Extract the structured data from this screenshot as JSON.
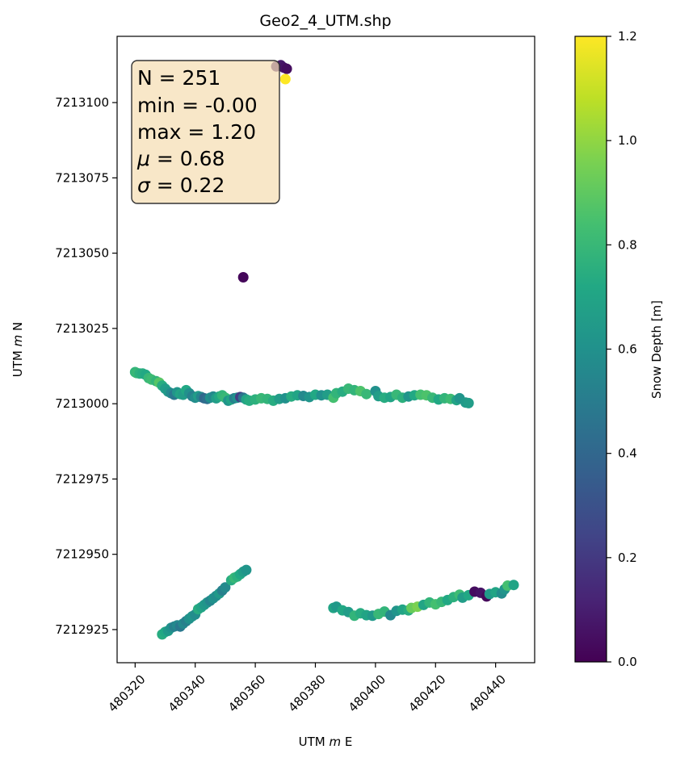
{
  "chart_data": {
    "type": "scatter",
    "title": "Geo2_4_UTM.shp",
    "xlabel": {
      "pre": "UTM ",
      "italic": "m",
      "post": " E"
    },
    "ylabel": {
      "pre": "UTM ",
      "italic": "m",
      "post": " N"
    },
    "xlim": [
      480314,
      480453
    ],
    "ylim": [
      7212914,
      7213122
    ],
    "x_ticks": [
      480320,
      480340,
      480360,
      480380,
      480400,
      480420,
      480440
    ],
    "y_ticks": [
      7212925,
      7212950,
      7212975,
      7213000,
      7213025,
      7213050,
      7213075,
      7213100
    ],
    "grid": false,
    "colormap": "viridis",
    "colorbar": {
      "label": "Snow Depth [m]",
      "range": [
        0.0,
        1.2
      ],
      "ticks": [
        "0.0",
        "0.2",
        "0.4",
        "0.6",
        "0.8",
        "1.0",
        "1.2"
      ]
    },
    "stats_box": {
      "lines": [
        {
          "pre": "N = 251"
        },
        {
          "pre": "min = -0.00"
        },
        {
          "pre": "max = 1.20"
        },
        {
          "sym": "μ",
          "post": " = 0.68"
        },
        {
          "sym": "σ",
          "post": " = 0.22"
        }
      ]
    },
    "points": [
      [
        480320.0,
        7213010.5,
        0.78
      ],
      [
        480320.5,
        7213010.2,
        0.8
      ],
      [
        480321.5,
        7213010.0,
        0.76
      ],
      [
        480322.5,
        7213010.0,
        0.74
      ],
      [
        480323.5,
        7213009.6,
        0.72
      ],
      [
        480324.5,
        7213008.5,
        0.8
      ],
      [
        480325.5,
        7213008.0,
        0.82
      ],
      [
        480327.0,
        7213007.5,
        0.78
      ],
      [
        480328.0,
        7213007.0,
        0.88
      ],
      [
        480329.0,
        7213006.0,
        0.74
      ],
      [
        480330.0,
        7213005.0,
        0.66
      ],
      [
        480331.0,
        7213004.0,
        0.64
      ],
      [
        480332.0,
        7213003.5,
        0.56
      ],
      [
        480333.0,
        7213003.0,
        0.48
      ],
      [
        480334.0,
        7213003.8,
        0.62
      ],
      [
        480335.0,
        7213003.2,
        0.7
      ],
      [
        480336.0,
        7213003.0,
        0.66
      ],
      [
        480337.0,
        7213004.5,
        0.72
      ],
      [
        480338.0,
        7213003.5,
        0.6
      ],
      [
        480339.0,
        7213002.5,
        0.52
      ],
      [
        480340.0,
        7213002.0,
        0.58
      ],
      [
        480341.0,
        7213002.5,
        0.66
      ],
      [
        480342.0,
        7213002.2,
        0.54
      ],
      [
        480343.0,
        7213001.8,
        0.4
      ],
      [
        480344.0,
        7213001.6,
        0.44
      ],
      [
        480345.0,
        7213002.0,
        0.6
      ],
      [
        480346.0,
        7213002.4,
        0.56
      ],
      [
        480347.0,
        7213001.8,
        0.66
      ],
      [
        480348.0,
        7213002.4,
        0.72
      ],
      [
        480349.0,
        7213002.8,
        0.78
      ],
      [
        480350.0,
        7213002.0,
        0.8
      ],
      [
        480351.0,
        7213001.0,
        0.62
      ],
      [
        480352.0,
        7213001.4,
        0.7
      ],
      [
        480353.0,
        7213001.8,
        0.52
      ],
      [
        480354.0,
        7213002.0,
        0.6
      ],
      [
        480355.0,
        7213002.2,
        0.22
      ],
      [
        480356.0,
        7213002.0,
        0.46
      ],
      [
        480357.0,
        7213001.4,
        0.7
      ],
      [
        480358.0,
        7213001.0,
        0.74
      ],
      [
        480360.0,
        7213001.4,
        0.76
      ],
      [
        480362.0,
        7213001.8,
        0.8
      ],
      [
        480364.0,
        7213001.6,
        0.78
      ],
      [
        480366.0,
        7213001.0,
        0.74
      ],
      [
        480368.0,
        7213001.6,
        0.66
      ],
      [
        480370.0,
        7213001.8,
        0.6
      ],
      [
        480372.0,
        7213002.4,
        0.74
      ],
      [
        480374.0,
        7213002.8,
        0.7
      ],
      [
        480376.0,
        7213002.6,
        0.56
      ],
      [
        480378.0,
        7213002.2,
        0.62
      ],
      [
        480380.0,
        7213003.0,
        0.72
      ],
      [
        480382.0,
        7213002.8,
        0.6
      ],
      [
        480384.0,
        7213003.0,
        0.66
      ],
      [
        480386.0,
        7213002.0,
        0.84
      ],
      [
        480387.0,
        7213003.5,
        0.78
      ],
      [
        480389.0,
        7213004.0,
        0.74
      ],
      [
        480391.0,
        7213005.0,
        0.8
      ],
      [
        480393.0,
        7213004.5,
        0.78
      ],
      [
        480395.0,
        7213004.2,
        0.86
      ],
      [
        480397.0,
        7213003.2,
        0.8
      ],
      [
        480400.0,
        7213004.2,
        0.6
      ],
      [
        480401.0,
        7213002.5,
        0.66
      ],
      [
        480403.0,
        7213002.0,
        0.74
      ],
      [
        480405.0,
        7213002.2,
        0.7
      ],
      [
        480407.0,
        7213003.0,
        0.8
      ],
      [
        480409.0,
        7213002.0,
        0.76
      ],
      [
        480411.0,
        7213002.4,
        0.62
      ],
      [
        480413.0,
        7213002.8,
        0.72
      ],
      [
        480415.0,
        7213003.0,
        0.84
      ],
      [
        480417.0,
        7213002.8,
        0.86
      ],
      [
        480419.0,
        7213002.0,
        0.8
      ],
      [
        480421.0,
        7213001.4,
        0.72
      ],
      [
        480423.0,
        7213001.8,
        0.78
      ],
      [
        480425.0,
        7213001.6,
        0.82
      ],
      [
        480427.0,
        7213001.2,
        0.7
      ],
      [
        480428.0,
        7213001.8,
        0.62
      ],
      [
        480430.0,
        7213000.4,
        0.64
      ],
      [
        480431.0,
        7213000.2,
        0.66
      ],
      [
        480329.0,
        7212923.4,
        0.74
      ],
      [
        480330.0,
        7212924.2,
        0.72
      ],
      [
        480331.0,
        7212924.6,
        0.64
      ],
      [
        480332.0,
        7212925.6,
        0.6
      ],
      [
        480333.0,
        7212926.0,
        0.52
      ],
      [
        480334.0,
        7212926.4,
        0.56
      ],
      [
        480335.0,
        7212926.0,
        0.48
      ],
      [
        480336.0,
        7212927.0,
        0.56
      ],
      [
        480337.0,
        7212927.8,
        0.52
      ],
      [
        480338.0,
        7212928.6,
        0.6
      ],
      [
        480339.0,
        7212929.4,
        0.62
      ],
      [
        480340.0,
        7212930.0,
        0.58
      ],
      [
        480341.0,
        7212931.8,
        0.74
      ],
      [
        480342.0,
        7212932.4,
        0.7
      ],
      [
        480343.0,
        7212933.2,
        0.64
      ],
      [
        480344.0,
        7212934.0,
        0.62
      ],
      [
        480345.0,
        7212934.6,
        0.54
      ],
      [
        480346.0,
        7212935.4,
        0.6
      ],
      [
        480347.0,
        7212936.2,
        0.58
      ],
      [
        480348.0,
        7212937.0,
        0.64
      ],
      [
        480349.0,
        7212938.0,
        0.52
      ],
      [
        480350.0,
        7212939.0,
        0.56
      ],
      [
        480352.0,
        7212941.4,
        0.74
      ],
      [
        480353.0,
        7212942.2,
        0.8
      ],
      [
        480354.0,
        7212942.6,
        0.76
      ],
      [
        480355.0,
        7212943.4,
        0.72
      ],
      [
        480356.0,
        7212944.2,
        0.66
      ],
      [
        480357.0,
        7212944.8,
        0.62
      ],
      [
        480386.0,
        7212932.2,
        0.7
      ],
      [
        480387.0,
        7212932.6,
        0.64
      ],
      [
        480389.0,
        7212931.4,
        0.72
      ],
      [
        480391.0,
        7212930.8,
        0.66
      ],
      [
        480393.0,
        7212929.6,
        0.78
      ],
      [
        480395.0,
        7212930.4,
        0.74
      ],
      [
        480397.0,
        7212929.8,
        0.7
      ],
      [
        480399.0,
        7212929.6,
        0.64
      ],
      [
        480401.0,
        7212930.2,
        0.8
      ],
      [
        480403.0,
        7212931.0,
        0.78
      ],
      [
        480405.0,
        7212929.8,
        0.56
      ],
      [
        480407.0,
        7212931.2,
        0.62
      ],
      [
        480409.0,
        7212931.6,
        0.7
      ],
      [
        480411.0,
        7212931.4,
        0.74
      ],
      [
        480412.0,
        7212932.2,
        0.92
      ],
      [
        480414.0,
        7212932.6,
        0.96
      ],
      [
        480416.0,
        7212933.2,
        0.7
      ],
      [
        480418.0,
        7212934.0,
        0.78
      ],
      [
        480420.0,
        7212933.4,
        0.84
      ],
      [
        480422.0,
        7212934.2,
        0.8
      ],
      [
        480424.0,
        7212934.8,
        0.72
      ],
      [
        480426.0,
        7212935.8,
        0.76
      ],
      [
        480428.0,
        7212936.6,
        0.82
      ],
      [
        480429.0,
        7212935.6,
        0.66
      ],
      [
        480431.0,
        7212936.4,
        0.72
      ],
      [
        480433.0,
        7212937.6,
        0.04
      ],
      [
        480435.0,
        7212937.2,
        0.06
      ],
      [
        480437.0,
        7212936.0,
        0.02
      ],
      [
        480438.0,
        7212936.8,
        0.64
      ],
      [
        480440.0,
        7212937.4,
        0.7
      ],
      [
        480442.0,
        7212937.0,
        0.58
      ],
      [
        480443.0,
        7212938.4,
        0.62
      ],
      [
        480444.0,
        7212939.6,
        0.84
      ],
      [
        480446.0,
        7212939.8,
        0.7
      ],
      [
        480356.0,
        7213042.0,
        0.02
      ],
      [
        480367.0,
        7213112.0,
        0.1
      ],
      [
        480368.5,
        7213112.4,
        0.08
      ],
      [
        480369.5,
        7213111.6,
        0.06
      ],
      [
        480370.5,
        7213111.2,
        0.04
      ],
      [
        480370.0,
        7213107.8,
        1.2
      ]
    ]
  }
}
